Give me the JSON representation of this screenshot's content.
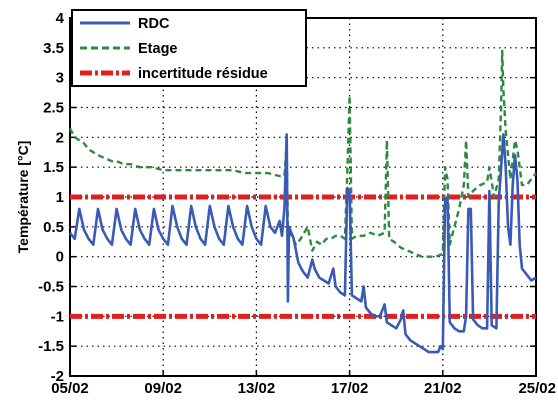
{
  "chart_data": {
    "type": "line",
    "ylabel": "Température [°C]",
    "xlabel": "",
    "xlim": [
      0,
      20
    ],
    "ylim": [
      -2,
      4
    ],
    "x_ticks": [
      {
        "x": 0,
        "label": "05/02"
      },
      {
        "x": 4,
        "label": "09/02"
      },
      {
        "x": 8,
        "label": "13/02"
      },
      {
        "x": 12,
        "label": "17/02"
      },
      {
        "x": 16,
        "label": "21/02"
      },
      {
        "x": 20,
        "label": "25/02"
      }
    ],
    "y_ticks": [
      {
        "y": -2,
        "label": "-2"
      },
      {
        "y": -1.5,
        "label": "-1.5"
      },
      {
        "y": -1,
        "label": "-1"
      },
      {
        "y": -0.5,
        "label": "-0.5"
      },
      {
        "y": 0,
        "label": "0"
      },
      {
        "y": 0.5,
        "label": "0.5"
      },
      {
        "y": 1,
        "label": "1"
      },
      {
        "y": 1.5,
        "label": "1.5"
      },
      {
        "y": 2,
        "label": "2"
      },
      {
        "y": 2.5,
        "label": "2.5"
      },
      {
        "y": 3,
        "label": "3"
      },
      {
        "y": 3.5,
        "label": "3.5"
      },
      {
        "y": 4,
        "label": "4"
      }
    ],
    "grid": true,
    "legend_position": "top-left",
    "series": [
      {
        "name": "RDC",
        "color": "#3a5bb5",
        "style": "solid",
        "points": [
          [
            0.0,
            0.4
          ],
          [
            0.2,
            0.3
          ],
          [
            0.4,
            0.8
          ],
          [
            0.6,
            0.45
          ],
          [
            0.8,
            0.3
          ],
          [
            1.0,
            0.2
          ],
          [
            1.2,
            0.8
          ],
          [
            1.4,
            0.45
          ],
          [
            1.6,
            0.3
          ],
          [
            1.8,
            0.2
          ],
          [
            2.0,
            0.8
          ],
          [
            2.2,
            0.45
          ],
          [
            2.4,
            0.3
          ],
          [
            2.6,
            0.2
          ],
          [
            2.8,
            0.8
          ],
          [
            3.0,
            0.45
          ],
          [
            3.2,
            0.3
          ],
          [
            3.4,
            0.2
          ],
          [
            3.6,
            0.8
          ],
          [
            3.8,
            0.45
          ],
          [
            4.0,
            0.3
          ],
          [
            4.2,
            0.2
          ],
          [
            4.4,
            0.85
          ],
          [
            4.6,
            0.5
          ],
          [
            4.8,
            0.3
          ],
          [
            5.0,
            0.2
          ],
          [
            5.2,
            0.85
          ],
          [
            5.4,
            0.5
          ],
          [
            5.6,
            0.3
          ],
          [
            5.8,
            0.2
          ],
          [
            6.0,
            0.85
          ],
          [
            6.2,
            0.5
          ],
          [
            6.4,
            0.3
          ],
          [
            6.6,
            0.2
          ],
          [
            6.8,
            0.85
          ],
          [
            7.0,
            0.5
          ],
          [
            7.2,
            0.3
          ],
          [
            7.4,
            0.2
          ],
          [
            7.6,
            0.85
          ],
          [
            7.8,
            0.5
          ],
          [
            8.0,
            0.3
          ],
          [
            8.2,
            0.2
          ],
          [
            8.4,
            0.85
          ],
          [
            8.6,
            0.5
          ],
          [
            8.8,
            0.4
          ],
          [
            9.0,
            0.6
          ],
          [
            9.1,
            0.35
          ],
          [
            9.2,
            0.8
          ],
          [
            9.3,
            2.05
          ],
          [
            9.35,
            -0.75
          ],
          [
            9.4,
            0.5
          ],
          [
            9.6,
            0.3
          ],
          [
            9.8,
            -0.1
          ],
          [
            10.0,
            -0.25
          ],
          [
            10.2,
            -0.35
          ],
          [
            10.4,
            -0.05
          ],
          [
            10.5,
            -0.2
          ],
          [
            10.7,
            -0.35
          ],
          [
            10.9,
            -0.4
          ],
          [
            11.1,
            -0.45
          ],
          [
            11.3,
            -0.2
          ],
          [
            11.4,
            -0.5
          ],
          [
            11.6,
            -0.6
          ],
          [
            11.8,
            -0.65
          ],
          [
            11.9,
            1.15
          ],
          [
            12.0,
            1.1
          ],
          [
            12.1,
            -0.65
          ],
          [
            12.3,
            -0.7
          ],
          [
            12.5,
            -0.75
          ],
          [
            12.6,
            -0.5
          ],
          [
            12.7,
            -0.85
          ],
          [
            12.9,
            -0.95
          ],
          [
            13.1,
            -1.0
          ],
          [
            13.3,
            -1.0
          ],
          [
            13.5,
            -0.8
          ],
          [
            13.6,
            -1.1
          ],
          [
            13.8,
            -1.15
          ],
          [
            14.0,
            -1.2
          ],
          [
            14.2,
            -1.05
          ],
          [
            14.3,
            -0.9
          ],
          [
            14.4,
            -1.3
          ],
          [
            14.6,
            -1.4
          ],
          [
            14.8,
            -1.45
          ],
          [
            15.0,
            -1.5
          ],
          [
            15.2,
            -1.55
          ],
          [
            15.4,
            -1.6
          ],
          [
            15.6,
            -1.6
          ],
          [
            15.8,
            -1.6
          ],
          [
            15.9,
            -1.5
          ],
          [
            16.0,
            -1.55
          ],
          [
            16.1,
            0.95
          ],
          [
            16.2,
            1.0
          ],
          [
            16.3,
            -1.1
          ],
          [
            16.5,
            -1.2
          ],
          [
            16.7,
            -1.25
          ],
          [
            16.9,
            -1.25
          ],
          [
            17.0,
            -1.0
          ],
          [
            17.1,
            0.8
          ],
          [
            17.2,
            0.8
          ],
          [
            17.3,
            -1.05
          ],
          [
            17.5,
            -1.15
          ],
          [
            17.7,
            -1.2
          ],
          [
            17.9,
            -1.2
          ],
          [
            18.0,
            1.1
          ],
          [
            18.1,
            -1.15
          ],
          [
            18.3,
            -1.2
          ],
          [
            18.4,
            0.9
          ],
          [
            18.6,
            2.05
          ],
          [
            18.7,
            1.5
          ],
          [
            18.8,
            0.5
          ],
          [
            18.9,
            0.2
          ],
          [
            19.0,
            1.2
          ],
          [
            19.1,
            1.7
          ],
          [
            19.2,
            1.3
          ],
          [
            19.3,
            0.2
          ],
          [
            19.4,
            -0.2
          ],
          [
            19.6,
            -0.3
          ],
          [
            19.8,
            -0.4
          ],
          [
            20.0,
            -0.35
          ]
        ]
      },
      {
        "name": "Etage",
        "color": "#2e8b3e",
        "style": "dashed",
        "points": [
          [
            0.0,
            2.15
          ],
          [
            0.2,
            2.0
          ],
          [
            0.4,
            1.95
          ],
          [
            0.6,
            1.9
          ],
          [
            0.8,
            1.8
          ],
          [
            1.0,
            1.75
          ],
          [
            1.2,
            1.7
          ],
          [
            1.5,
            1.65
          ],
          [
            1.8,
            1.6
          ],
          [
            2.0,
            1.6
          ],
          [
            2.3,
            1.55
          ],
          [
            2.6,
            1.55
          ],
          [
            3.0,
            1.5
          ],
          [
            3.5,
            1.5
          ],
          [
            4.0,
            1.45
          ],
          [
            4.5,
            1.45
          ],
          [
            5.0,
            1.45
          ],
          [
            5.5,
            1.45
          ],
          [
            6.0,
            1.45
          ],
          [
            6.5,
            1.45
          ],
          [
            7.0,
            1.45
          ],
          [
            7.5,
            1.4
          ],
          [
            8.0,
            1.4
          ],
          [
            8.5,
            1.4
          ],
          [
            9.0,
            1.35
          ],
          [
            9.2,
            1.35
          ],
          [
            9.3,
            1.9
          ],
          [
            9.35,
            0.5
          ],
          [
            9.5,
            0.35
          ],
          [
            9.7,
            0.2
          ],
          [
            9.9,
            0.3
          ],
          [
            10.2,
            0.5
          ],
          [
            10.4,
            0.1
          ],
          [
            10.6,
            0.25
          ],
          [
            10.8,
            0.2
          ],
          [
            11.0,
            0.3
          ],
          [
            11.2,
            0.3
          ],
          [
            11.4,
            0.35
          ],
          [
            11.6,
            0.35
          ],
          [
            11.8,
            0.3
          ],
          [
            11.9,
            1.4
          ],
          [
            12.0,
            2.7
          ],
          [
            12.1,
            0.3
          ],
          [
            12.3,
            0.35
          ],
          [
            12.6,
            0.35
          ],
          [
            12.9,
            0.4
          ],
          [
            13.2,
            0.35
          ],
          [
            13.5,
            0.4
          ],
          [
            13.6,
            1.95
          ],
          [
            13.7,
            0.3
          ],
          [
            13.9,
            0.25
          ],
          [
            14.2,
            0.15
          ],
          [
            14.5,
            0.1
          ],
          [
            14.8,
            0.05
          ],
          [
            15.1,
            0.0
          ],
          [
            15.4,
            0.0
          ],
          [
            15.7,
            0.0
          ],
          [
            16.0,
            0.05
          ],
          [
            16.1,
            1.5
          ],
          [
            16.2,
            1.3
          ],
          [
            16.3,
            0.2
          ],
          [
            16.5,
            0.5
          ],
          [
            16.7,
            0.8
          ],
          [
            16.9,
            1.2
          ],
          [
            17.0,
            1.95
          ],
          [
            17.1,
            1.0
          ],
          [
            17.3,
            1.1
          ],
          [
            17.6,
            1.2
          ],
          [
            17.9,
            1.25
          ],
          [
            18.0,
            1.5
          ],
          [
            18.2,
            1.0
          ],
          [
            18.4,
            1.3
          ],
          [
            18.5,
            2.5
          ],
          [
            18.55,
            3.45
          ],
          [
            18.6,
            2.8
          ],
          [
            18.7,
            2.1
          ],
          [
            18.9,
            1.3
          ],
          [
            19.1,
            1.95
          ],
          [
            19.2,
            1.8
          ],
          [
            19.4,
            1.2
          ],
          [
            19.6,
            1.2
          ],
          [
            19.8,
            1.3
          ],
          [
            20.0,
            1.4
          ]
        ]
      },
      {
        "name": "incertitude résidue",
        "color": "#e02020",
        "style": "dashdot",
        "hlines": [
          1,
          -1
        ]
      }
    ]
  }
}
